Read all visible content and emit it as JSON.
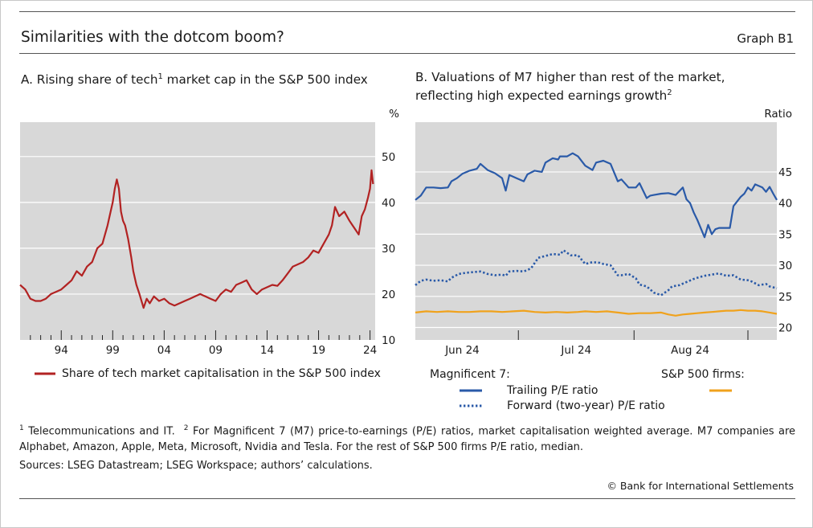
{
  "header": {
    "title": "Similarities with the dotcom boom?",
    "graph_label": "Graph B1"
  },
  "footer": {
    "note1": "Telecommunications and IT.",
    "note2": "For Magnificent 7 (M7) price-to-earnings (P/E) ratios, market capitalisation weighted average. M7 companies are Alphabet, Amazon, Apple, Meta, Microsoft, Nvidia and Tesla. For the rest of S&P 500 firms P/E ratio, median.",
    "sources": "Sources: LSEG Datastream; LSEG Workspace; authors’ calculations.",
    "copyright": "© Bank for International Settlements"
  },
  "colors": {
    "red": "#b22222",
    "blue": "#2a5aa8",
    "orange": "#f0a21c",
    "plot_bg": "#d8d8d8"
  },
  "chart_data": [
    {
      "type": "line",
      "title": "A. Rising share of tech market cap in the S&P 500 index",
      "title_parts": [
        "A. Rising share of tech",
        "1",
        " market cap in the S&P 500 index"
      ],
      "unit": "%",
      "xlim": [
        1990,
        2024.5
      ],
      "ylim": [
        10,
        57.5
      ],
      "xticklabels": [
        "94",
        "99",
        "04",
        "09",
        "14",
        "19",
        "24"
      ],
      "xtick_positions": [
        1994,
        1999,
        2004,
        2009,
        2014,
        2019,
        2024
      ],
      "yticks": [
        10,
        20,
        30,
        40,
        50
      ],
      "legend_position": "below",
      "series": [
        {
          "name": "Share of tech market capitalisation in the S&P 500 index",
          "color": "#b22222",
          "x": [
            1990.0,
            1990.5,
            1991.0,
            1991.5,
            1992.0,
            1992.5,
            1993.0,
            1993.5,
            1994.0,
            1994.5,
            1995.0,
            1995.5,
            1996.0,
            1996.5,
            1997.0,
            1997.5,
            1998.0,
            1998.5,
            1998.8,
            1999.0,
            1999.2,
            1999.4,
            1999.6,
            1999.8,
            2000.0,
            2000.2,
            2000.5,
            2000.8,
            2001.0,
            2001.3,
            2001.6,
            2002.0,
            2002.3,
            2002.6,
            2003.0,
            2003.5,
            2004.0,
            2004.5,
            2005.0,
            2005.5,
            2006.0,
            2006.5,
            2007.0,
            2007.5,
            2008.0,
            2008.5,
            2009.0,
            2009.5,
            2010.0,
            2010.5,
            2011.0,
            2011.5,
            2012.0,
            2012.5,
            2013.0,
            2013.5,
            2014.0,
            2014.5,
            2015.0,
            2015.5,
            2016.0,
            2016.5,
            2017.0,
            2017.5,
            2018.0,
            2018.5,
            2019.0,
            2019.5,
            2020.0,
            2020.3,
            2020.6,
            2021.0,
            2021.5,
            2022.0,
            2022.3,
            2022.6,
            2022.9,
            2023.2,
            2023.5,
            2023.8,
            2024.0,
            2024.15,
            2024.3
          ],
          "values": [
            22,
            21,
            19,
            18.5,
            18.5,
            19,
            20,
            20.5,
            21,
            22,
            23,
            25,
            24,
            26,
            27,
            30,
            31,
            35,
            38,
            40,
            43,
            45,
            43,
            38,
            36,
            35,
            32,
            28,
            25,
            22,
            20,
            17,
            19,
            18,
            19.5,
            18.5,
            19,
            18,
            17.5,
            18,
            18.5,
            19,
            19.5,
            20,
            19.5,
            19,
            18.5,
            20,
            21,
            20.5,
            22,
            22.5,
            23,
            21,
            20,
            21,
            21.5,
            22,
            21.8,
            23,
            24.5,
            26,
            26.5,
            27,
            28,
            29.5,
            29,
            31,
            33,
            35,
            39,
            37,
            38,
            36,
            35,
            34,
            33,
            37,
            38.5,
            41,
            43,
            47,
            44
          ]
        }
      ]
    },
    {
      "type": "line",
      "title": "B. Valuations of M7 higher than rest of the market, reflecting high expected earnings growth",
      "title_lines": [
        "B. Valuations of M7 higher than rest of the market,",
        "reflecting high expected earnings growth"
      ],
      "title_sup": "2",
      "unit": "Ratio",
      "xlim": [
        0,
        100
      ],
      "ylim": [
        18,
        53
      ],
      "xticklabels": [
        "Jun 24",
        "Jul 24",
        "Aug 24"
      ],
      "xtick_label_positions": [
        13,
        44.5,
        76
      ],
      "xtick_positions": [
        28.5,
        60.5,
        92
      ],
      "yticks": [
        20,
        25,
        30,
        35,
        40,
        45
      ],
      "legend_position": "below",
      "legend_headers": [
        "Magnificent 7:",
        "S&P 500 firms:"
      ],
      "series": [
        {
          "name": "Trailing P/E ratio",
          "color": "#2a5aa8",
          "style": "solid",
          "x": [
            0,
            1.5,
            3,
            5,
            7,
            9,
            10,
            11.5,
            13,
            15,
            17,
            18,
            19,
            20,
            22,
            24,
            25,
            26,
            28,
            30,
            31,
            33,
            35,
            36,
            38,
            39.5,
            40,
            42,
            43.5,
            45,
            47,
            49,
            50,
            52,
            54,
            56,
            57,
            59,
            61,
            62,
            64,
            65,
            66,
            68,
            70,
            72,
            74,
            75,
            76,
            77,
            78,
            80,
            81,
            82,
            83,
            84,
            85,
            87,
            88,
            90,
            91,
            92,
            93,
            94,
            96,
            97,
            98,
            99,
            100
          ],
          "values": [
            40.5,
            41.2,
            42.5,
            42.5,
            42.4,
            42.5,
            43.5,
            44,
            44.7,
            45.2,
            45.5,
            46.3,
            45.8,
            45.3,
            44.8,
            44,
            42,
            44.5,
            44,
            43.5,
            44.6,
            45.2,
            45,
            46.5,
            47.2,
            47,
            47.5,
            47.5,
            48,
            47.5,
            46,
            45.3,
            46.5,
            46.8,
            46.3,
            43.5,
            43.8,
            42.5,
            42.5,
            43.2,
            40.8,
            41.2,
            41.3,
            41.5,
            41.6,
            41.3,
            42.5,
            40.6,
            40,
            38.5,
            37.3,
            34.5,
            36.5,
            35,
            35.8,
            36,
            36,
            36,
            39.5,
            41,
            41.5,
            42.5,
            42,
            43,
            42.5,
            41.8,
            42.6,
            41.5,
            40.5
          ]
        },
        {
          "name": "Forward (two-year) P/E ratio",
          "color": "#2a5aa8",
          "style": "dotted",
          "x": [
            0,
            1.5,
            3,
            5,
            7,
            9,
            10,
            12,
            14,
            16,
            18,
            20,
            22,
            24,
            25,
            26,
            28,
            30,
            32,
            34,
            36,
            38,
            40,
            41,
            43,
            45,
            47,
            49,
            51,
            52,
            54,
            56,
            57,
            59,
            61,
            62,
            64,
            66,
            68,
            70,
            71,
            73,
            75,
            77,
            78,
            80,
            82,
            84,
            86,
            88,
            90,
            92,
            93,
            95,
            97,
            98,
            100
          ],
          "values": [
            26.8,
            27.5,
            27.7,
            27.5,
            27.6,
            27.4,
            28,
            28.6,
            28.8,
            28.9,
            29,
            28.6,
            28.4,
            28.5,
            28.3,
            29,
            29.1,
            29,
            29.5,
            31.2,
            31.5,
            31.8,
            31.7,
            32.4,
            31.6,
            31.6,
            30.2,
            30.5,
            30.4,
            30.2,
            30,
            28.4,
            28.4,
            28.6,
            27.9,
            26.9,
            26.6,
            25.6,
            25.2,
            26,
            26.6,
            26.8,
            27.3,
            27.8,
            28,
            28.3,
            28.5,
            28.7,
            28.3,
            28.4,
            27.7,
            27.6,
            27.4,
            26.8,
            27,
            26.6,
            26.3
          ]
        },
        {
          "name": "S&P 500 firms",
          "color": "#f0a21c",
          "style": "solid",
          "x": [
            0,
            3,
            6,
            9,
            12,
            15,
            18,
            21,
            24,
            27,
            30,
            33,
            36,
            39,
            42,
            45,
            47,
            50,
            53,
            56,
            59,
            62,
            65,
            68,
            70,
            72,
            74,
            76,
            78,
            80,
            82,
            84,
            86,
            88,
            90,
            92,
            94,
            96,
            98,
            100
          ],
          "values": [
            22.4,
            22.6,
            22.5,
            22.6,
            22.5,
            22.5,
            22.6,
            22.6,
            22.5,
            22.6,
            22.7,
            22.5,
            22.4,
            22.5,
            22.4,
            22.5,
            22.6,
            22.5,
            22.6,
            22.4,
            22.2,
            22.3,
            22.3,
            22.4,
            22.1,
            21.9,
            22.1,
            22.2,
            22.3,
            22.4,
            22.5,
            22.6,
            22.7,
            22.7,
            22.8,
            22.7,
            22.7,
            22.6,
            22.4,
            22.2
          ]
        }
      ]
    }
  ]
}
